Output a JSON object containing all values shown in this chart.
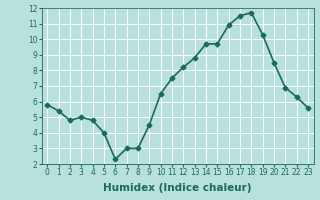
{
  "x": [
    0,
    1,
    2,
    3,
    4,
    5,
    6,
    7,
    8,
    9,
    10,
    11,
    12,
    13,
    14,
    15,
    16,
    17,
    18,
    19,
    20,
    21,
    22,
    23
  ],
  "y": [
    5.8,
    5.4,
    4.8,
    5.0,
    4.8,
    4.0,
    2.3,
    3.0,
    3.0,
    4.5,
    6.5,
    7.5,
    8.2,
    8.8,
    9.7,
    9.7,
    10.9,
    11.5,
    11.7,
    10.3,
    8.5,
    6.9,
    6.3,
    5.6
  ],
  "line_color": "#1a6b5a",
  "marker": "D",
  "marker_size": 2.5,
  "bg_color": "#b8e0dc",
  "grid_color": "#ffffff",
  "xlabel": "Humidex (Indice chaleur)",
  "ylim": [
    2,
    12
  ],
  "xlim_min": -0.5,
  "xlim_max": 23.5,
  "yticks": [
    2,
    3,
    4,
    5,
    6,
    7,
    8,
    9,
    10,
    11,
    12
  ],
  "xticks": [
    0,
    1,
    2,
    3,
    4,
    5,
    6,
    7,
    8,
    9,
    10,
    11,
    12,
    13,
    14,
    15,
    16,
    17,
    18,
    19,
    20,
    21,
    22,
    23
  ],
  "tick_color": "#1a6b5a",
  "label_color": "#1a6b5a",
  "tick_fontsize": 5.5,
  "xlabel_fontsize": 7.5,
  "linewidth": 1.2
}
